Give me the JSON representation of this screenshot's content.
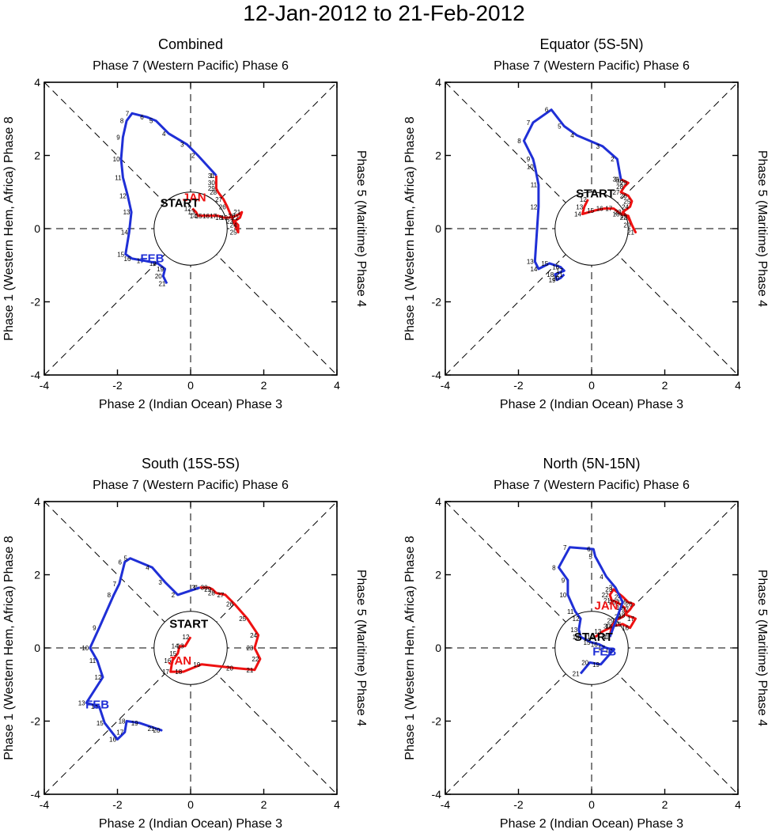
{
  "title": "12-Jan-2012 to 21-Feb-2012",
  "colors": {
    "jan": "#ee1111",
    "feb": "#1f2fd6",
    "axis": "#000000",
    "guide": "#000000"
  },
  "axis_labels": {
    "top": "Phase 7 (Western Pacific) Phase 6",
    "bottom": "Phase 2 (Indian Ocean) Phase 3",
    "left": "Phase 1 (Western Hem, Africa) Phase 8",
    "right": "Phase 5 (Maritime) Phase 4"
  },
  "tick_labels": [
    "-4",
    "-2",
    "0",
    "2",
    "4"
  ],
  "chart_data": [
    {
      "type": "line",
      "panel": "combined",
      "title": "Combined",
      "xlim": [
        -4,
        4
      ],
      "ylim": [
        -4,
        4
      ],
      "start_label": "START",
      "start_pos": [
        -0.3,
        0.6
      ],
      "month_labels": [
        {
          "text": "JAN",
          "x": 0.1,
          "y": 0.75,
          "series": "jan"
        },
        {
          "text": "FEB",
          "x": -1.05,
          "y": -0.92,
          "series": "feb"
        }
      ],
      "series": [
        {
          "name": "jan",
          "points": [
            [
              0.05,
              0.55
            ],
            [
              0.15,
              0.45
            ],
            [
              0.2,
              0.35
            ],
            [
              0.35,
              0.35
            ],
            [
              0.55,
              0.35
            ],
            [
              0.75,
              0.35
            ],
            [
              0.9,
              0.3
            ],
            [
              1.05,
              0.3
            ],
            [
              1.25,
              0.35
            ],
            [
              1.4,
              0.45
            ],
            [
              1.35,
              0.3
            ],
            [
              1.2,
              0.2
            ],
            [
              1.3,
              0.1
            ],
            [
              1.3,
              -0.1
            ],
            [
              1.0,
              0.6
            ],
            [
              0.9,
              0.8
            ],
            [
              0.75,
              1.0
            ],
            [
              0.7,
              1.1
            ],
            [
              0.7,
              1.25
            ],
            [
              0.7,
              1.45
            ]
          ],
          "labels": [
            "12",
            "13",
            "14",
            "15",
            "16",
            "17",
            "18",
            "19",
            "20",
            "21",
            "22",
            "23",
            "24",
            "25",
            "26",
            "27",
            "28",
            "29",
            "30",
            "31"
          ]
        },
        {
          "name": "feb",
          "points": [
            [
              0.7,
              1.45
            ],
            [
              0.2,
              2.0
            ],
            [
              -0.1,
              2.3
            ],
            [
              -0.6,
              2.6
            ],
            [
              -0.95,
              2.95
            ],
            [
              -1.2,
              3.05
            ],
            [
              -1.6,
              3.15
            ],
            [
              -1.75,
              2.95
            ],
            [
              -1.85,
              2.5
            ],
            [
              -1.9,
              1.9
            ],
            [
              -1.85,
              1.4
            ],
            [
              -1.72,
              0.9
            ],
            [
              -1.62,
              0.45
            ],
            [
              -1.68,
              -0.1
            ],
            [
              -1.78,
              -0.7
            ],
            [
              -1.6,
              -0.82
            ],
            [
              -1.25,
              -0.88
            ],
            [
              -0.9,
              -0.95
            ],
            [
              -0.7,
              -1.1
            ],
            [
              -0.75,
              -1.3
            ],
            [
              -0.65,
              -1.5
            ]
          ],
          "labels": [
            "1",
            "2",
            "3",
            "4",
            "5",
            "6",
            "7",
            "8",
            "9",
            "10",
            "11",
            "12",
            "13",
            "14",
            "15",
            "16",
            "17",
            "18",
            "19",
            "20",
            "21"
          ]
        }
      ]
    },
    {
      "type": "line",
      "panel": "equator",
      "title": "Equator (5S-5N)",
      "xlim": [
        -4,
        4
      ],
      "ylim": [
        -4,
        4
      ],
      "start_label": "START",
      "start_pos": [
        0.1,
        0.85
      ],
      "month_labels": [],
      "series": [
        {
          "name": "jan",
          "points": [
            [
              -0.1,
              0.8
            ],
            [
              -0.2,
              0.6
            ],
            [
              -0.25,
              0.4
            ],
            [
              0.1,
              0.5
            ],
            [
              0.35,
              0.55
            ],
            [
              0.6,
              0.55
            ],
            [
              0.8,
              0.4
            ],
            [
              1.0,
              0.35
            ],
            [
              1.1,
              0.1
            ],
            [
              1.2,
              -0.1
            ],
            [
              1.0,
              0.3
            ],
            [
              0.85,
              0.45
            ],
            [
              1.05,
              0.6
            ],
            [
              1.1,
              0.75
            ],
            [
              1.0,
              0.9
            ],
            [
              0.8,
              1.0
            ],
            [
              0.9,
              1.15
            ],
            [
              1.0,
              1.25
            ],
            [
              0.9,
              1.3
            ],
            [
              0.8,
              1.35
            ]
          ],
          "labels": [
            "12",
            "13",
            "14",
            "15",
            "16",
            "17",
            "18",
            "19",
            "20",
            "21",
            "22",
            "23",
            "24",
            "25",
            "26",
            "27",
            "28",
            "29",
            "30",
            "31"
          ]
        },
        {
          "name": "feb",
          "points": [
            [
              0.8,
              1.35
            ],
            [
              0.7,
              1.9
            ],
            [
              0.3,
              2.25
            ],
            [
              -0.4,
              2.55
            ],
            [
              -0.75,
              2.8
            ],
            [
              -1.1,
              3.25
            ],
            [
              -1.6,
              2.9
            ],
            [
              -1.85,
              2.4
            ],
            [
              -1.6,
              1.9
            ],
            [
              -1.55,
              1.7
            ],
            [
              -1.45,
              1.2
            ],
            [
              -1.45,
              0.6
            ],
            [
              -1.55,
              -0.9
            ],
            [
              -1.45,
              -1.1
            ],
            [
              -1.15,
              -0.95
            ],
            [
              -0.85,
              -1.05
            ],
            [
              -0.75,
              -1.15
            ],
            [
              -1.0,
              -1.25
            ],
            [
              -0.95,
              -1.4
            ],
            [
              -0.85,
              -1.35
            ],
            [
              -0.75,
              -1.25
            ]
          ],
          "labels": [
            "1",
            "2",
            "3",
            "4",
            "5",
            "6",
            "7",
            "8",
            "9",
            "10",
            "11",
            "12",
            "13",
            "14",
            "15",
            "16",
            "17",
            "18",
            "19",
            "20",
            "21"
          ]
        }
      ]
    },
    {
      "type": "line",
      "panel": "south",
      "title": "South (15S-5S)",
      "xlim": [
        -4,
        4
      ],
      "ylim": [
        -4,
        4
      ],
      "start_label": "START",
      "start_pos": [
        -0.05,
        0.55
      ],
      "month_labels": [
        {
          "text": "JAN",
          "x": -0.3,
          "y": -0.45,
          "series": "jan"
        },
        {
          "text": "FEB",
          "x": -2.55,
          "y": -1.65,
          "series": "feb"
        }
      ],
      "series": [
        {
          "name": "jan",
          "points": [
            [
              0.0,
              0.3
            ],
            [
              -0.15,
              0.05
            ],
            [
              -0.3,
              0.05
            ],
            [
              -0.35,
              -0.15
            ],
            [
              -0.5,
              -0.35
            ],
            [
              -0.55,
              -0.65
            ],
            [
              -0.2,
              -0.65
            ],
            [
              0.3,
              -0.45
            ],
            [
              1.2,
              -0.55
            ],
            [
              1.75,
              -0.6
            ],
            [
              1.9,
              -0.3
            ],
            [
              1.75,
              0.0
            ],
            [
              1.85,
              0.35
            ],
            [
              1.55,
              0.8
            ],
            [
              1.2,
              1.2
            ],
            [
              0.95,
              1.45
            ],
            [
              0.7,
              1.5
            ],
            [
              0.6,
              1.6
            ],
            [
              0.5,
              1.65
            ],
            [
              0.25,
              1.65
            ]
          ],
          "labels": [
            "12",
            "13",
            "14",
            "15",
            "16",
            "17",
            "18",
            "19",
            "20",
            "21",
            "22",
            "23",
            "24",
            "25",
            "26",
            "27",
            "28",
            "29",
            "30",
            "31"
          ]
        },
        {
          "name": "feb",
          "points": [
            [
              0.25,
              1.65
            ],
            [
              -0.35,
              1.45
            ],
            [
              -0.7,
              1.8
            ],
            [
              -1.05,
              2.2
            ],
            [
              -1.65,
              2.45
            ],
            [
              -1.8,
              2.35
            ],
            [
              -1.95,
              1.75
            ],
            [
              -2.1,
              1.45
            ],
            [
              -2.5,
              0.55
            ],
            [
              -2.75,
              0.0
            ],
            [
              -2.55,
              -0.35
            ],
            [
              -2.4,
              -0.8
            ],
            [
              -2.85,
              -1.5
            ],
            [
              -2.5,
              -1.6
            ],
            [
              -2.35,
              -2.05
            ],
            [
              -2.0,
              -2.5
            ],
            [
              -1.8,
              -2.3
            ],
            [
              -1.75,
              -2.0
            ],
            [
              -1.4,
              -2.05
            ],
            [
              -0.8,
              -2.25
            ],
            [
              -0.95,
              -2.2
            ]
          ],
          "labels": [
            "1",
            "2",
            "3",
            "4",
            "5",
            "6",
            "7",
            "8",
            "9",
            "10",
            "11",
            "12",
            "13",
            "14",
            "15",
            "16",
            "17",
            "18",
            "19",
            "20",
            "21"
          ]
        }
      ]
    },
    {
      "type": "line",
      "panel": "north",
      "title": "North (5N-15N)",
      "xlim": [
        -4,
        4
      ],
      "ylim": [
        -4,
        4
      ],
      "start_label": "START",
      "start_pos": [
        0.05,
        0.2
      ],
      "month_labels": [
        {
          "text": "JAN",
          "x": 0.4,
          "y": 1.05,
          "series": "jan"
        },
        {
          "text": "FEB",
          "x": 0.35,
          "y": -0.2,
          "series": "feb"
        }
      ],
      "series": [
        {
          "name": "jan",
          "points": [
            [
              0.1,
              0.3
            ],
            [
              0.3,
              0.45
            ],
            [
              0.6,
              0.6
            ],
            [
              0.85,
              0.65
            ],
            [
              1.05,
              0.55
            ],
            [
              1.2,
              0.8
            ],
            [
              0.95,
              0.9
            ],
            [
              0.9,
              1.1
            ],
            [
              0.7,
              1.25
            ],
            [
              0.55,
              1.3
            ],
            [
              0.5,
              1.45
            ],
            [
              0.6,
              1.6
            ],
            [
              0.85,
              1.4
            ],
            [
              1.0,
              1.25
            ],
            [
              1.15,
              1.2
            ],
            [
              1.05,
              1.05
            ],
            [
              0.85,
              0.85
            ],
            [
              0.65,
              0.75
            ],
            [
              0.55,
              0.6
            ],
            [
              0.5,
              0.3
            ]
          ],
          "labels": [
            "12",
            "13",
            "14",
            "15",
            "16",
            "17",
            "18",
            "19",
            "20",
            "21",
            "22",
            "23",
            "24",
            "25",
            "26",
            "27",
            "28",
            "29",
            "30",
            "31"
          ]
        },
        {
          "name": "feb",
          "points": [
            [
              0.5,
              0.3
            ],
            [
              0.85,
              1.25
            ],
            [
              0.65,
              1.65
            ],
            [
              0.4,
              1.95
            ],
            [
              0.1,
              2.5
            ],
            [
              0.05,
              2.7
            ],
            [
              -0.6,
              2.75
            ],
            [
              -0.9,
              2.2
            ],
            [
              -0.65,
              1.85
            ],
            [
              -0.65,
              1.45
            ],
            [
              -0.45,
              1.0
            ],
            [
              -0.3,
              0.8
            ],
            [
              -0.35,
              0.5
            ],
            [
              -0.3,
              0.3
            ],
            [
              0.0,
              0.15
            ],
            [
              0.2,
              0.1
            ],
            [
              0.4,
              0.0
            ],
            [
              0.6,
              -0.05
            ],
            [
              0.25,
              -0.45
            ],
            [
              -0.05,
              -0.4
            ],
            [
              -0.3,
              -0.7
            ]
          ],
          "labels": [
            "1",
            "2",
            "3",
            "4",
            "5",
            "6",
            "7",
            "8",
            "9",
            "10",
            "11",
            "12",
            "13",
            "14",
            "15",
            "16",
            "17",
            "18",
            "19",
            "20",
            "21"
          ]
        }
      ]
    }
  ]
}
